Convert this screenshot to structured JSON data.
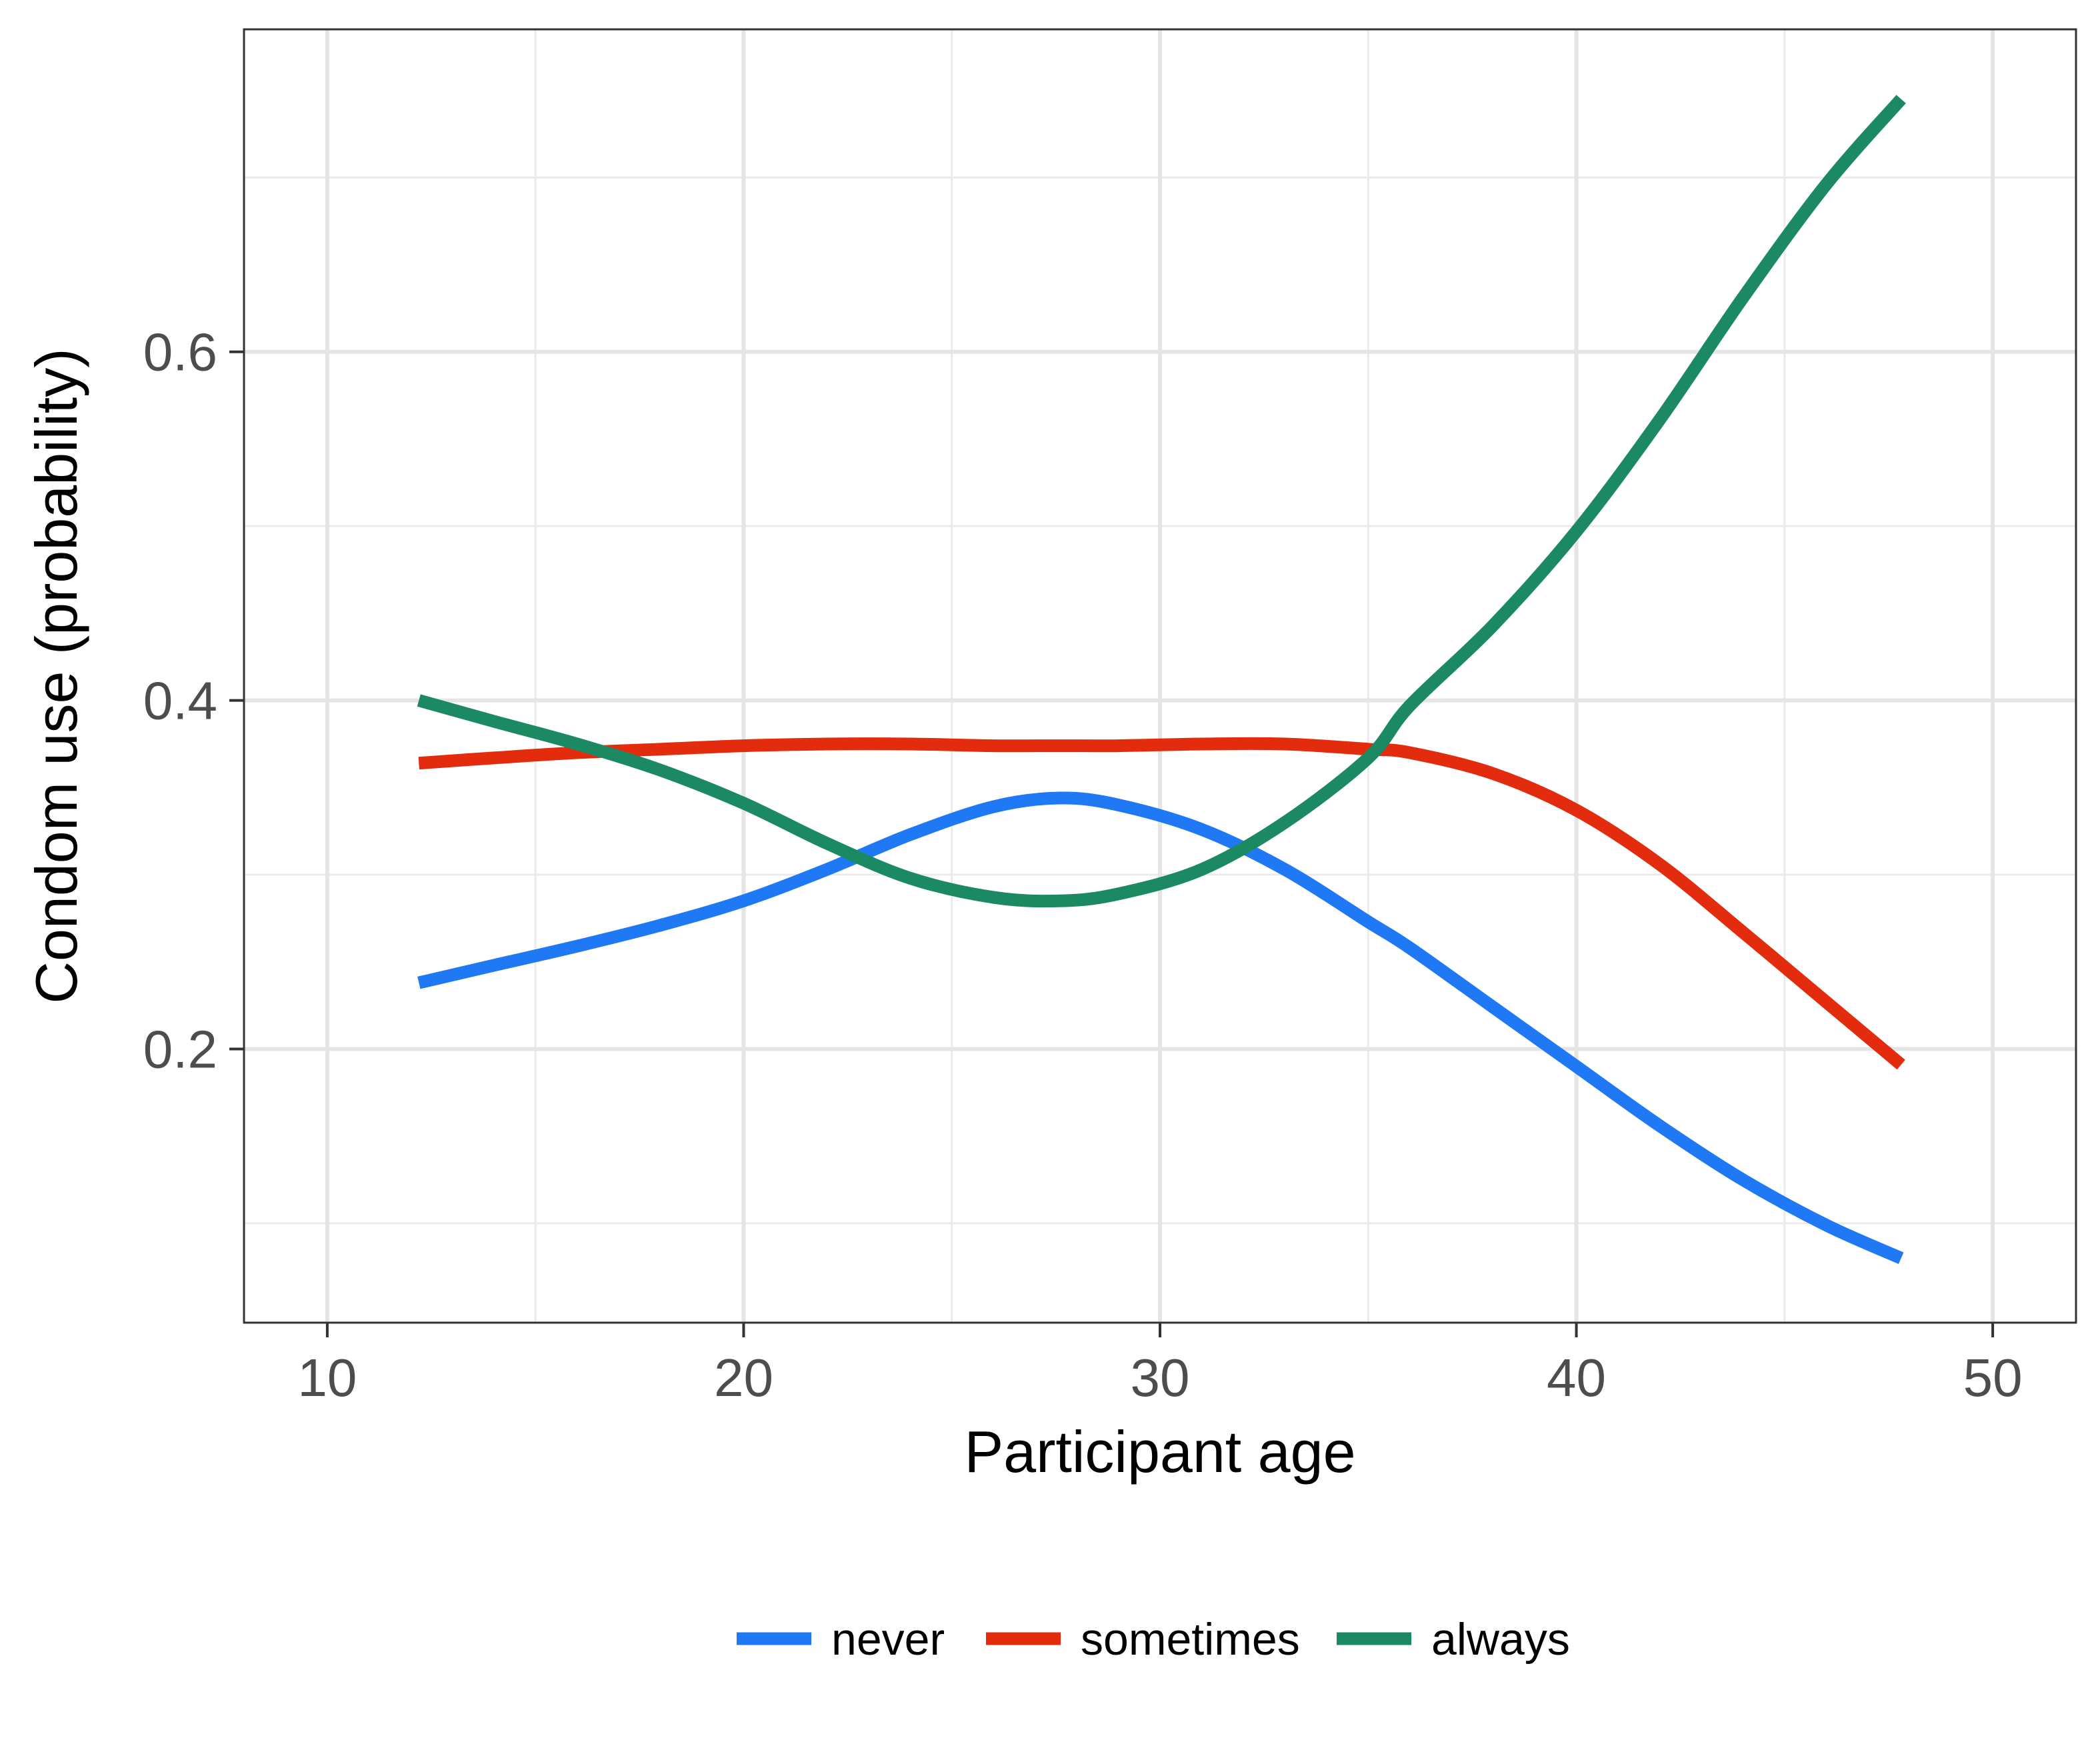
{
  "chart_data": {
    "type": "line",
    "title": "",
    "xlabel": "Participant age",
    "ylabel": "Condom use (probability)",
    "xlim": [
      8,
      52
    ],
    "ylim": [
      0.043,
      0.785
    ],
    "x_ticks": [
      10,
      20,
      30,
      40,
      50
    ],
    "x_tick_labels": [
      "10",
      "20",
      "30",
      "40",
      "50"
    ],
    "y_ticks": [
      0.2,
      0.4,
      0.6
    ],
    "y_tick_labels": [
      "0.2",
      "0.4",
      "0.6"
    ],
    "x_minor_ticks": [
      15,
      25,
      35,
      45
    ],
    "y_minor_ticks": [
      0.1,
      0.3,
      0.5,
      0.7
    ],
    "grid": true,
    "legend_position": "bottom",
    "x": [
      12.2,
      14,
      16,
      18,
      20,
      22,
      24,
      26,
      27.6,
      29,
      31,
      33,
      35,
      36,
      38,
      40,
      42,
      44,
      46,
      47.8
    ],
    "series": [
      {
        "name": "never",
        "color": "#1f78f4",
        "values": [
          0.238,
          0.248,
          0.259,
          0.271,
          0.285,
          0.303,
          0.323,
          0.339,
          0.344,
          0.34,
          0.326,
          0.303,
          0.273,
          0.258,
          0.224,
          0.19,
          0.156,
          0.125,
          0.099,
          0.08
        ]
      },
      {
        "name": "sometimes",
        "color": "#e32b0d",
        "values": [
          0.364,
          0.367,
          0.37,
          0.372,
          0.374,
          0.375,
          0.375,
          0.374,
          0.374,
          0.374,
          0.375,
          0.375,
          0.372,
          0.37,
          0.358,
          0.337,
          0.306,
          0.267,
          0.227,
          0.191
        ]
      },
      {
        "name": "always",
        "color": "#1b8a63",
        "values": [
          0.4,
          0.388,
          0.375,
          0.36,
          0.341,
          0.318,
          0.298,
          0.287,
          0.285,
          0.289,
          0.303,
          0.33,
          0.367,
          0.397,
          0.443,
          0.497,
          0.561,
          0.631,
          0.696,
          0.745
        ]
      }
    ]
  }
}
